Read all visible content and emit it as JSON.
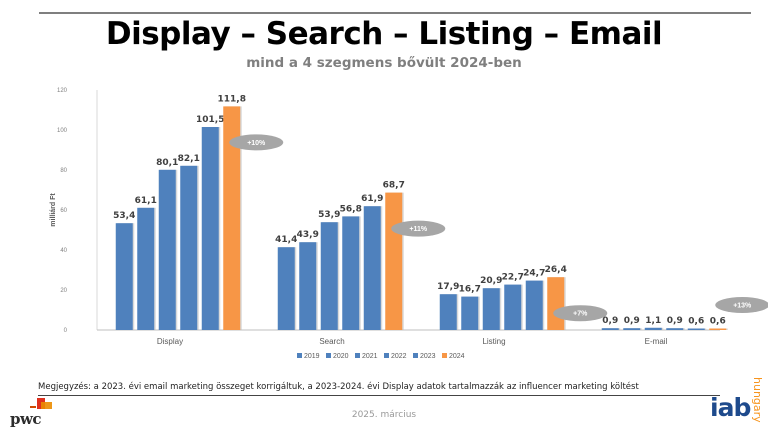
{
  "header": {
    "title": "Display – Search – Listing – Email",
    "subtitle": "mind a 4 szegmens bővült 2024-ben"
  },
  "chart_data": {
    "type": "bar",
    "categories": [
      "Display",
      "Search",
      "Listing",
      "E-mail"
    ],
    "series": [
      {
        "name": "2019",
        "values": [
          53.4,
          41.4,
          17.9,
          0.9
        ],
        "labels": [
          "53,4",
          "41,4",
          "17,9",
          "0,9"
        ]
      },
      {
        "name": "2020",
        "values": [
          61.1,
          43.9,
          16.7,
          0.9
        ],
        "labels": [
          "61,1",
          "43,9",
          "16,7",
          "0,9"
        ]
      },
      {
        "name": "2021",
        "values": [
          80.1,
          53.9,
          20.9,
          1.1
        ],
        "labels": [
          "80,1",
          "53,9",
          "20,9",
          "1,1"
        ]
      },
      {
        "name": "2022",
        "values": [
          82.1,
          56.8,
          22.7,
          0.9
        ],
        "labels": [
          "82,1",
          "56,8",
          "22,7",
          "0,9"
        ]
      },
      {
        "name": "2023",
        "values": [
          101.5,
          61.9,
          24.7,
          0.6
        ],
        "labels": [
          "101,5",
          "61,9",
          "24,7",
          "0,6"
        ]
      },
      {
        "name": "2024",
        "values": [
          111.8,
          68.7,
          26.4,
          0.6
        ],
        "labels": [
          "111,8",
          "68,7",
          "26,4",
          "0,6"
        ]
      }
    ],
    "growth_labels": [
      "+10%",
      "+11%",
      "+7%",
      "+13%"
    ],
    "ylabel": "milliárd Ft",
    "xlabel": "",
    "ylim": [
      0,
      120
    ],
    "yticks": [
      0,
      20,
      40,
      60,
      80,
      100,
      120
    ],
    "grid": false,
    "legend": "bottom",
    "colors": {
      "blue": "#4f81bd",
      "orange": "#f79646",
      "badge": "#a6a6a6"
    }
  },
  "footer": {
    "note": "Megjegyzés: a 2023. évi email marketing összeget korrigáltuk, a 2023-2024. évi Display adatok tartalmazzák az influencer marketing költést",
    "date": "2025. március",
    "logos": {
      "left": "pwc",
      "right_main": "iab",
      "right_sub": "hungary"
    }
  }
}
